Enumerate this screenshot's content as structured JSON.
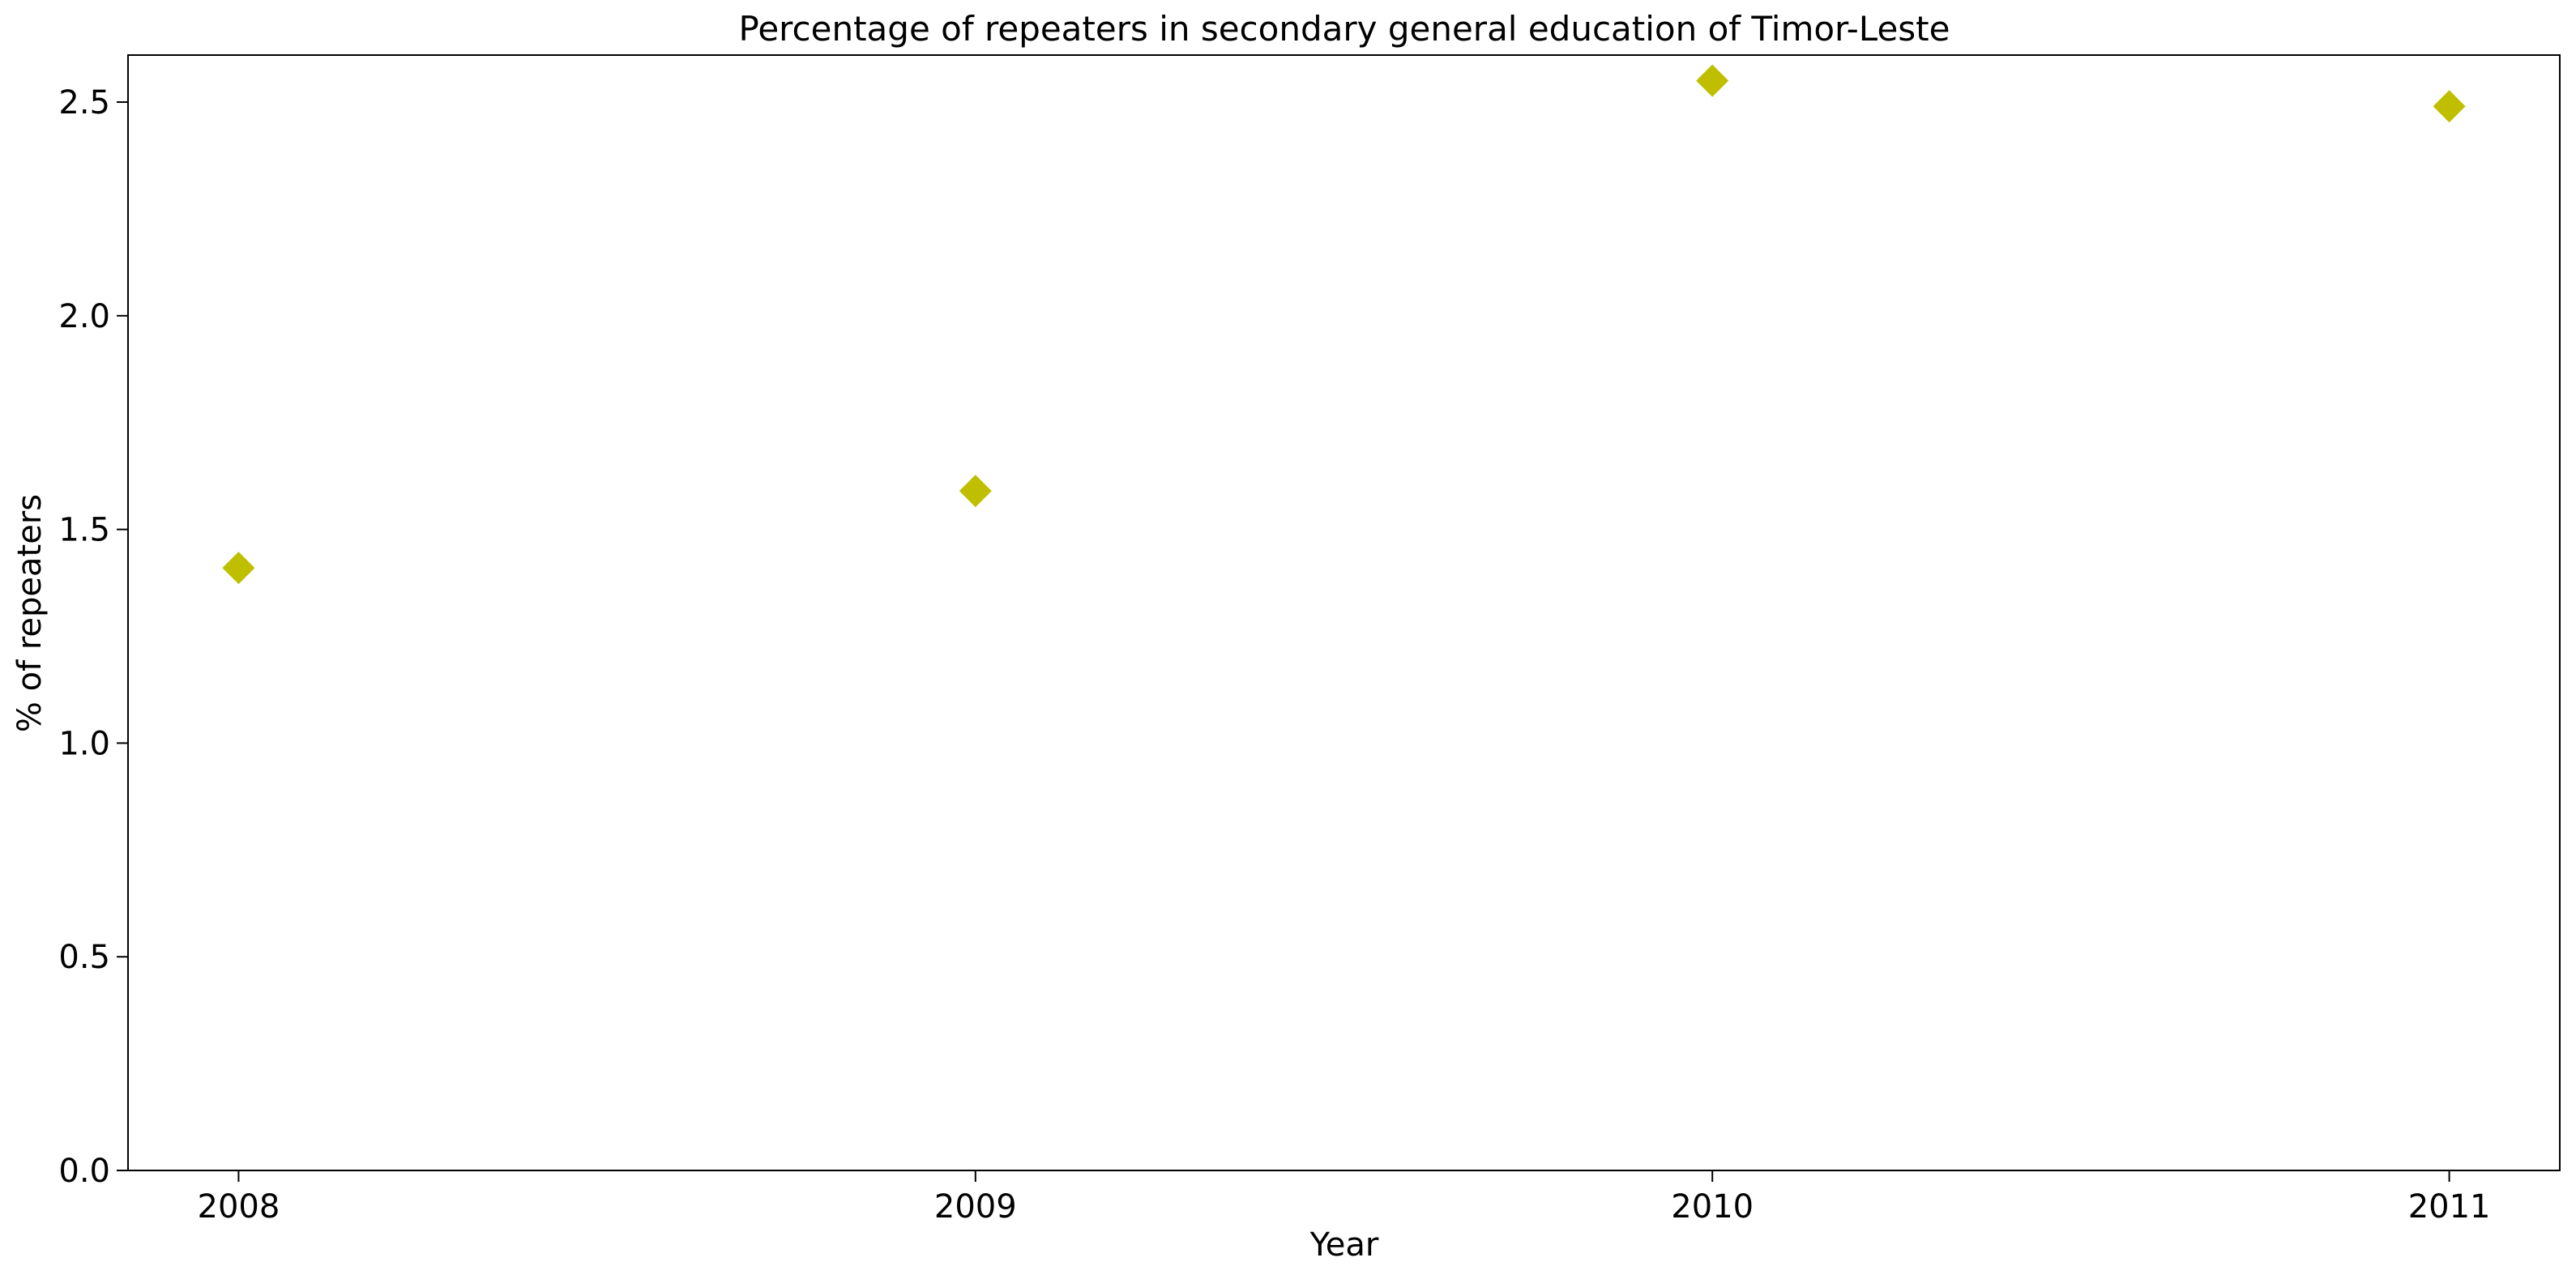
{
  "chart_data": {
    "type": "scatter",
    "title": "Percentage of repeaters in secondary general education of Timor-Leste",
    "xlabel": "Year",
    "ylabel": "% of repeaters",
    "x": [
      2008,
      2009,
      2010,
      2011
    ],
    "x_tick_labels": [
      "2008",
      "2009",
      "2010",
      "2011"
    ],
    "y": [
      1.41,
      1.59,
      2.55,
      2.49
    ],
    "y_ticks": [
      0.0,
      0.5,
      1.0,
      1.5,
      2.0,
      2.5
    ],
    "y_tick_labels": [
      "0.0",
      "0.5",
      "1.0",
      "1.5",
      "2.0",
      "2.5"
    ],
    "xlim": [
      2007.85,
      2011.15
    ],
    "ylim": [
      0,
      2.61
    ],
    "marker": "diamond",
    "marker_color": "#bfbf00",
    "grid": false,
    "legend": "none"
  }
}
